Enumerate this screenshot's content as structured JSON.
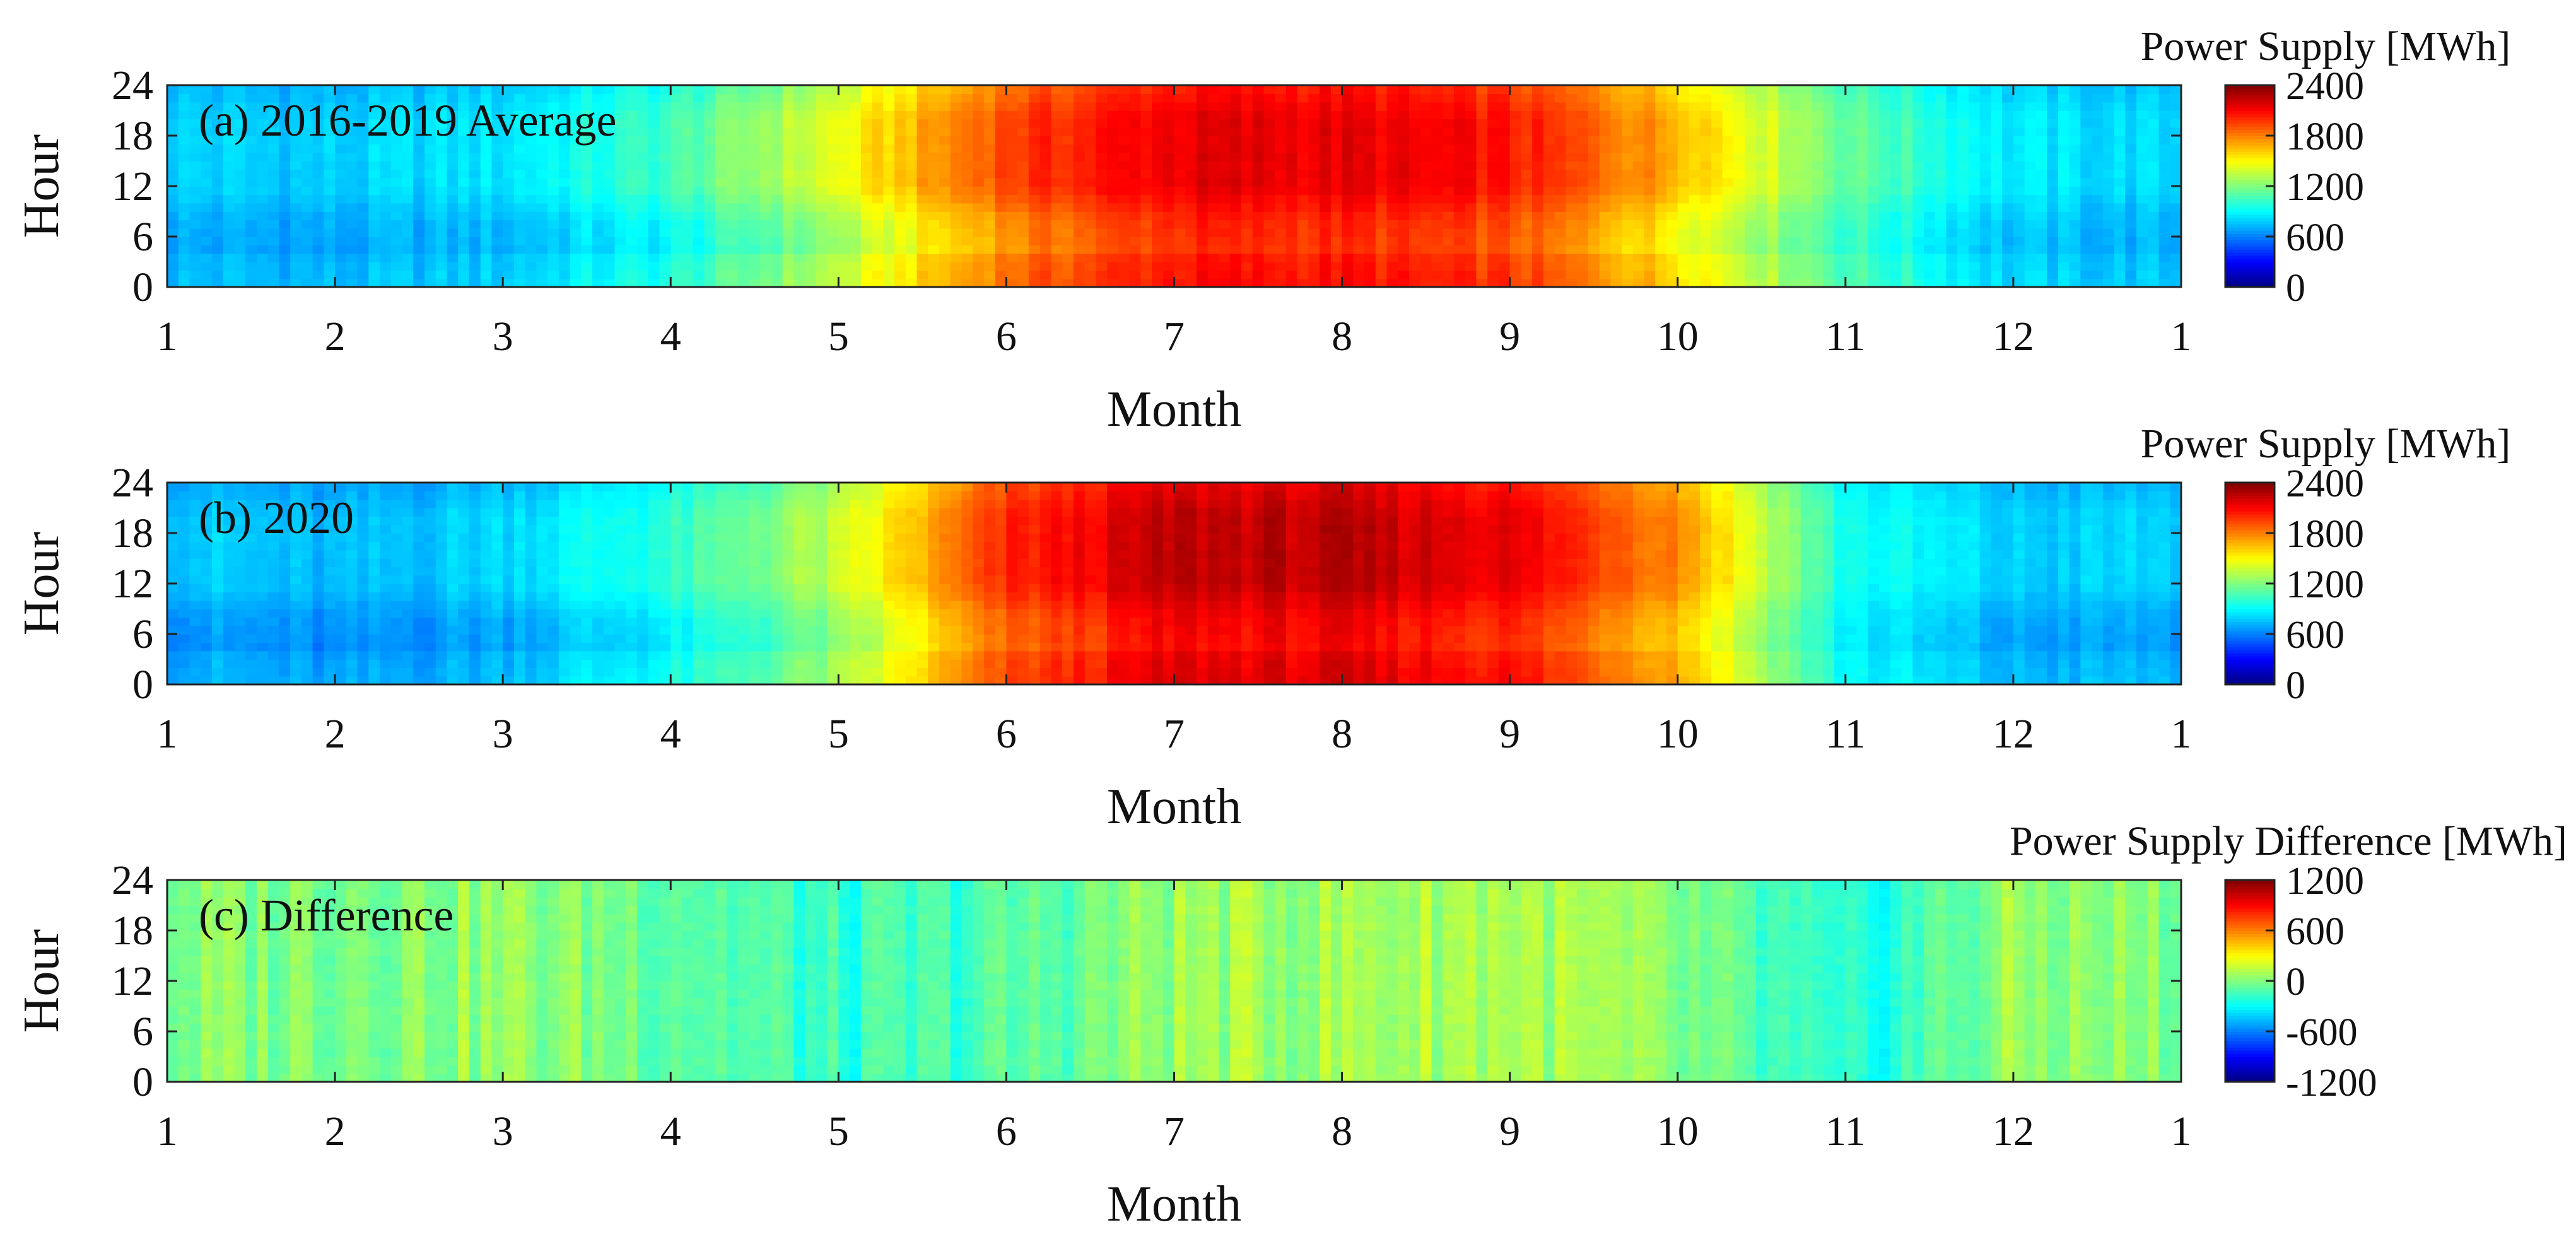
{
  "chart_data": [
    {
      "type": "heatmap",
      "panel": "a",
      "title": "(a)  2016-2019 Average",
      "xlabel": "Month",
      "ylabel": "Hour",
      "xlim": [
        1,
        13
      ],
      "ylim": [
        0,
        24
      ],
      "xticks": [
        1,
        2,
        3,
        4,
        5,
        6,
        7,
        8,
        9,
        10,
        11,
        12,
        13
      ],
      "xtick_labels": [
        "1",
        "2",
        "3",
        "4",
        "5",
        "6",
        "7",
        "8",
        "9",
        "10",
        "11",
        "12",
        "1"
      ],
      "yticks": [
        0,
        6,
        12,
        18,
        24
      ],
      "ytick_labels": [
        "0",
        "6",
        "12",
        "18",
        "24"
      ],
      "colorbar": {
        "label": "Power Supply [MWh]",
        "range": [
          0,
          2400
        ],
        "ticks": [
          0,
          600,
          1200,
          1800,
          2400
        ],
        "tick_labels": [
          "0",
          "600",
          "1200",
          "1800",
          "2400"
        ],
        "colormap": "jet"
      },
      "monthly_day_level": [
        800,
        780,
        850,
        1050,
        1450,
        1950,
        2150,
        2150,
        2050,
        1700,
        1150,
        850,
        800
      ],
      "monthly_night_level": [
        680,
        650,
        700,
        850,
        1200,
        1700,
        1950,
        1950,
        1850,
        1450,
        1000,
        720,
        680
      ]
    },
    {
      "type": "heatmap",
      "panel": "b",
      "title": "(b)  2020",
      "xlabel": "Month",
      "ylabel": "Hour",
      "xlim": [
        1,
        13
      ],
      "ylim": [
        0,
        24
      ],
      "xticks": [
        1,
        2,
        3,
        4,
        5,
        6,
        7,
        8,
        9,
        10,
        11,
        12,
        13
      ],
      "xtick_labels": [
        "1",
        "2",
        "3",
        "4",
        "5",
        "6",
        "7",
        "8",
        "9",
        "10",
        "11",
        "12",
        "1"
      ],
      "yticks": [
        0,
        6,
        12,
        18,
        24
      ],
      "ytick_labels": [
        "0",
        "6",
        "12",
        "18",
        "24"
      ],
      "colorbar": {
        "label": "Power Supply [MWh]",
        "range": [
          0,
          2400
        ],
        "ticks": [
          0,
          600,
          1200,
          1800,
          2400
        ],
        "tick_labels": [
          "0",
          "600",
          "1200",
          "1800",
          "2400"
        ],
        "colormap": "jet"
      },
      "monthly_day_level": [
        800,
        720,
        820,
        1000,
        1350,
        2000,
        2250,
        2250,
        2150,
        1800,
        950,
        780,
        800
      ],
      "monthly_night_level": [
        640,
        580,
        650,
        820,
        1150,
        1800,
        2050,
        2050,
        1950,
        1600,
        850,
        650,
        640
      ]
    },
    {
      "type": "heatmap",
      "panel": "c",
      "title": "(c)  Difference",
      "xlabel": "Month",
      "ylabel": "Hour",
      "xlim": [
        1,
        13
      ],
      "ylim": [
        0,
        24
      ],
      "xticks": [
        1,
        2,
        3,
        4,
        5,
        6,
        7,
        8,
        9,
        10,
        11,
        12,
        13
      ],
      "xtick_labels": [
        "1",
        "2",
        "3",
        "4",
        "5",
        "6",
        "7",
        "8",
        "9",
        "10",
        "11",
        "12",
        "1"
      ],
      "yticks": [
        0,
        6,
        12,
        18,
        24
      ],
      "ytick_labels": [
        "0",
        "6",
        "12",
        "18",
        "24"
      ],
      "colorbar": {
        "label": "Power Supply Difference [MWh]",
        "range": [
          -1200,
          1200
        ],
        "ticks": [
          -1200,
          -600,
          0,
          600,
          1200
        ],
        "tick_labels": [
          "-1200",
          "-600",
          "0",
          "600",
          "1200"
        ],
        "colormap": "jet"
      },
      "monthly_mean_difference": [
        0,
        20,
        40,
        -40,
        -200,
        -120,
        60,
        80,
        120,
        -20,
        -280,
        40,
        0
      ]
    }
  ]
}
